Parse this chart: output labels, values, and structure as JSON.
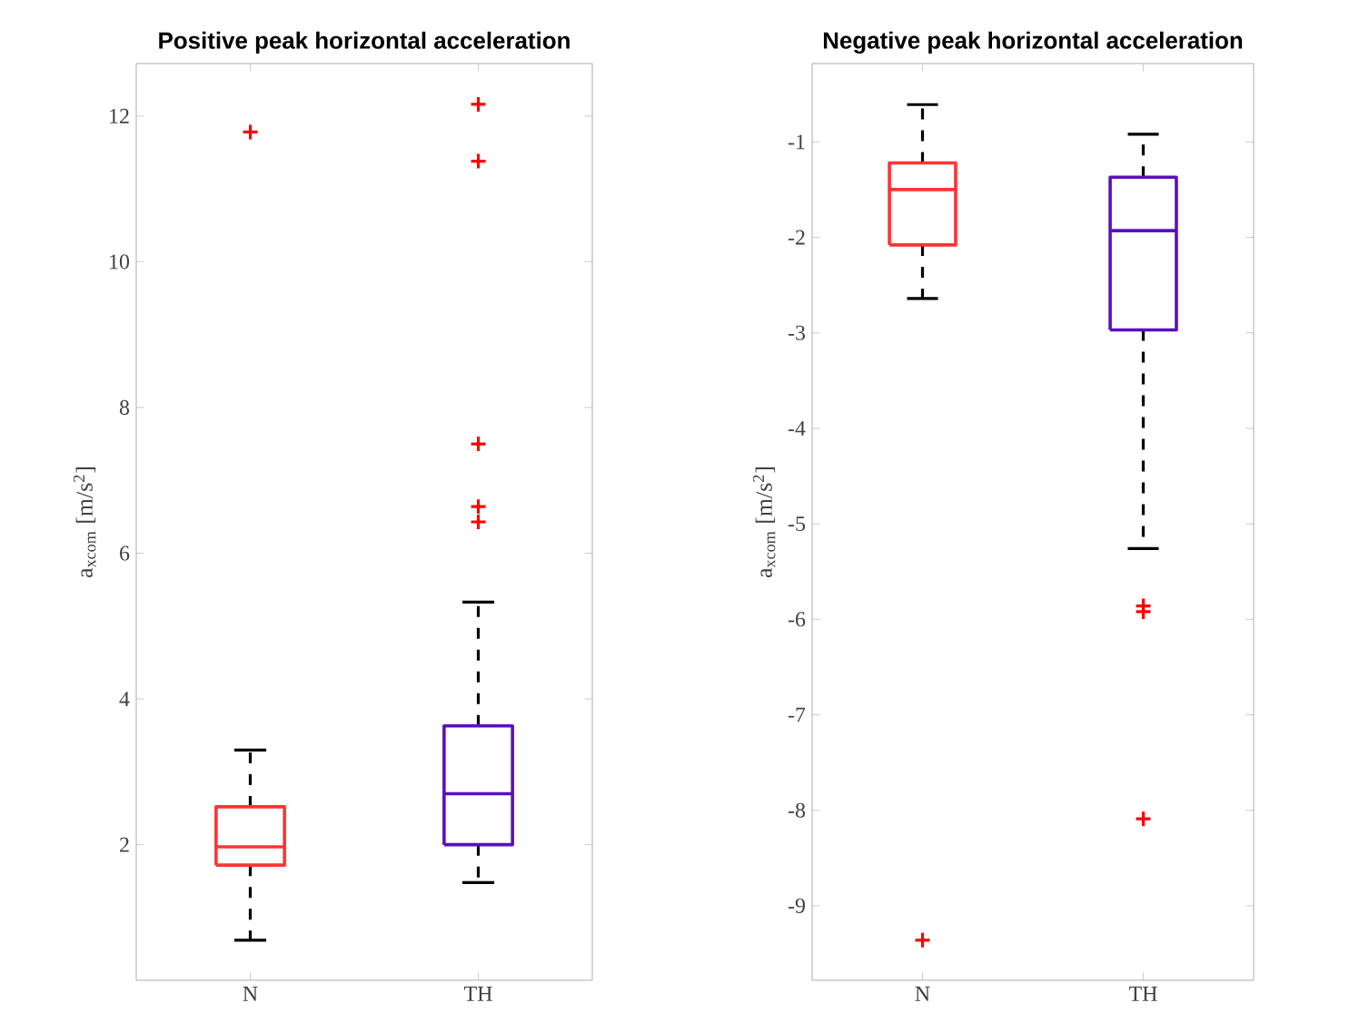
{
  "chart_data": [
    {
      "type": "box",
      "title": "Positive peak horizontal acceleration",
      "ylabel": "a$_{xcom}$ [m/s$^{2}$]",
      "categories": [
        "N",
        "TH"
      ],
      "colors": [
        "#ff3333",
        "#5a0fbf"
      ],
      "marker": "cross",
      "boxes": [
        {
          "low": 0.69,
          "q1": 1.72,
          "median": 1.97,
          "q3": 2.52,
          "high": 3.3,
          "outliers": [
            11.78
          ]
        },
        {
          "low": 1.48,
          "q1": 2.0,
          "median": 2.7,
          "q3": 3.63,
          "high": 5.33,
          "outliers": [
            12.16,
            11.38,
            7.5,
            6.64,
            6.43
          ]
        }
      ],
      "ylim": [
        0.14,
        12.72
      ],
      "yticks": [
        2,
        4,
        6,
        8,
        10,
        12
      ]
    },
    {
      "type": "box",
      "title": "Negative peak horizontal acceleration",
      "ylabel": "a$_{xcom}$ [m/s$^{2}$]",
      "categories": [
        "N",
        "TH"
      ],
      "colors": [
        "#ff3333",
        "#5a0fbf"
      ],
      "marker": "cross",
      "boxes": [
        {
          "low": -2.64,
          "q1": -2.08,
          "median": -1.5,
          "q3": -1.22,
          "high": -0.61,
          "outliers": [
            -9.36
          ]
        },
        {
          "low": -5.26,
          "q1": -2.97,
          "median": -1.93,
          "q3": -1.37,
          "high": -0.92,
          "outliers": [
            -5.86,
            -5.92,
            -8.09
          ]
        }
      ],
      "ylim": [
        -9.78,
        -0.18
      ],
      "yticks": [
        -9,
        -8,
        -7,
        -6,
        -5,
        -4,
        -3,
        -2,
        -1
      ]
    }
  ]
}
